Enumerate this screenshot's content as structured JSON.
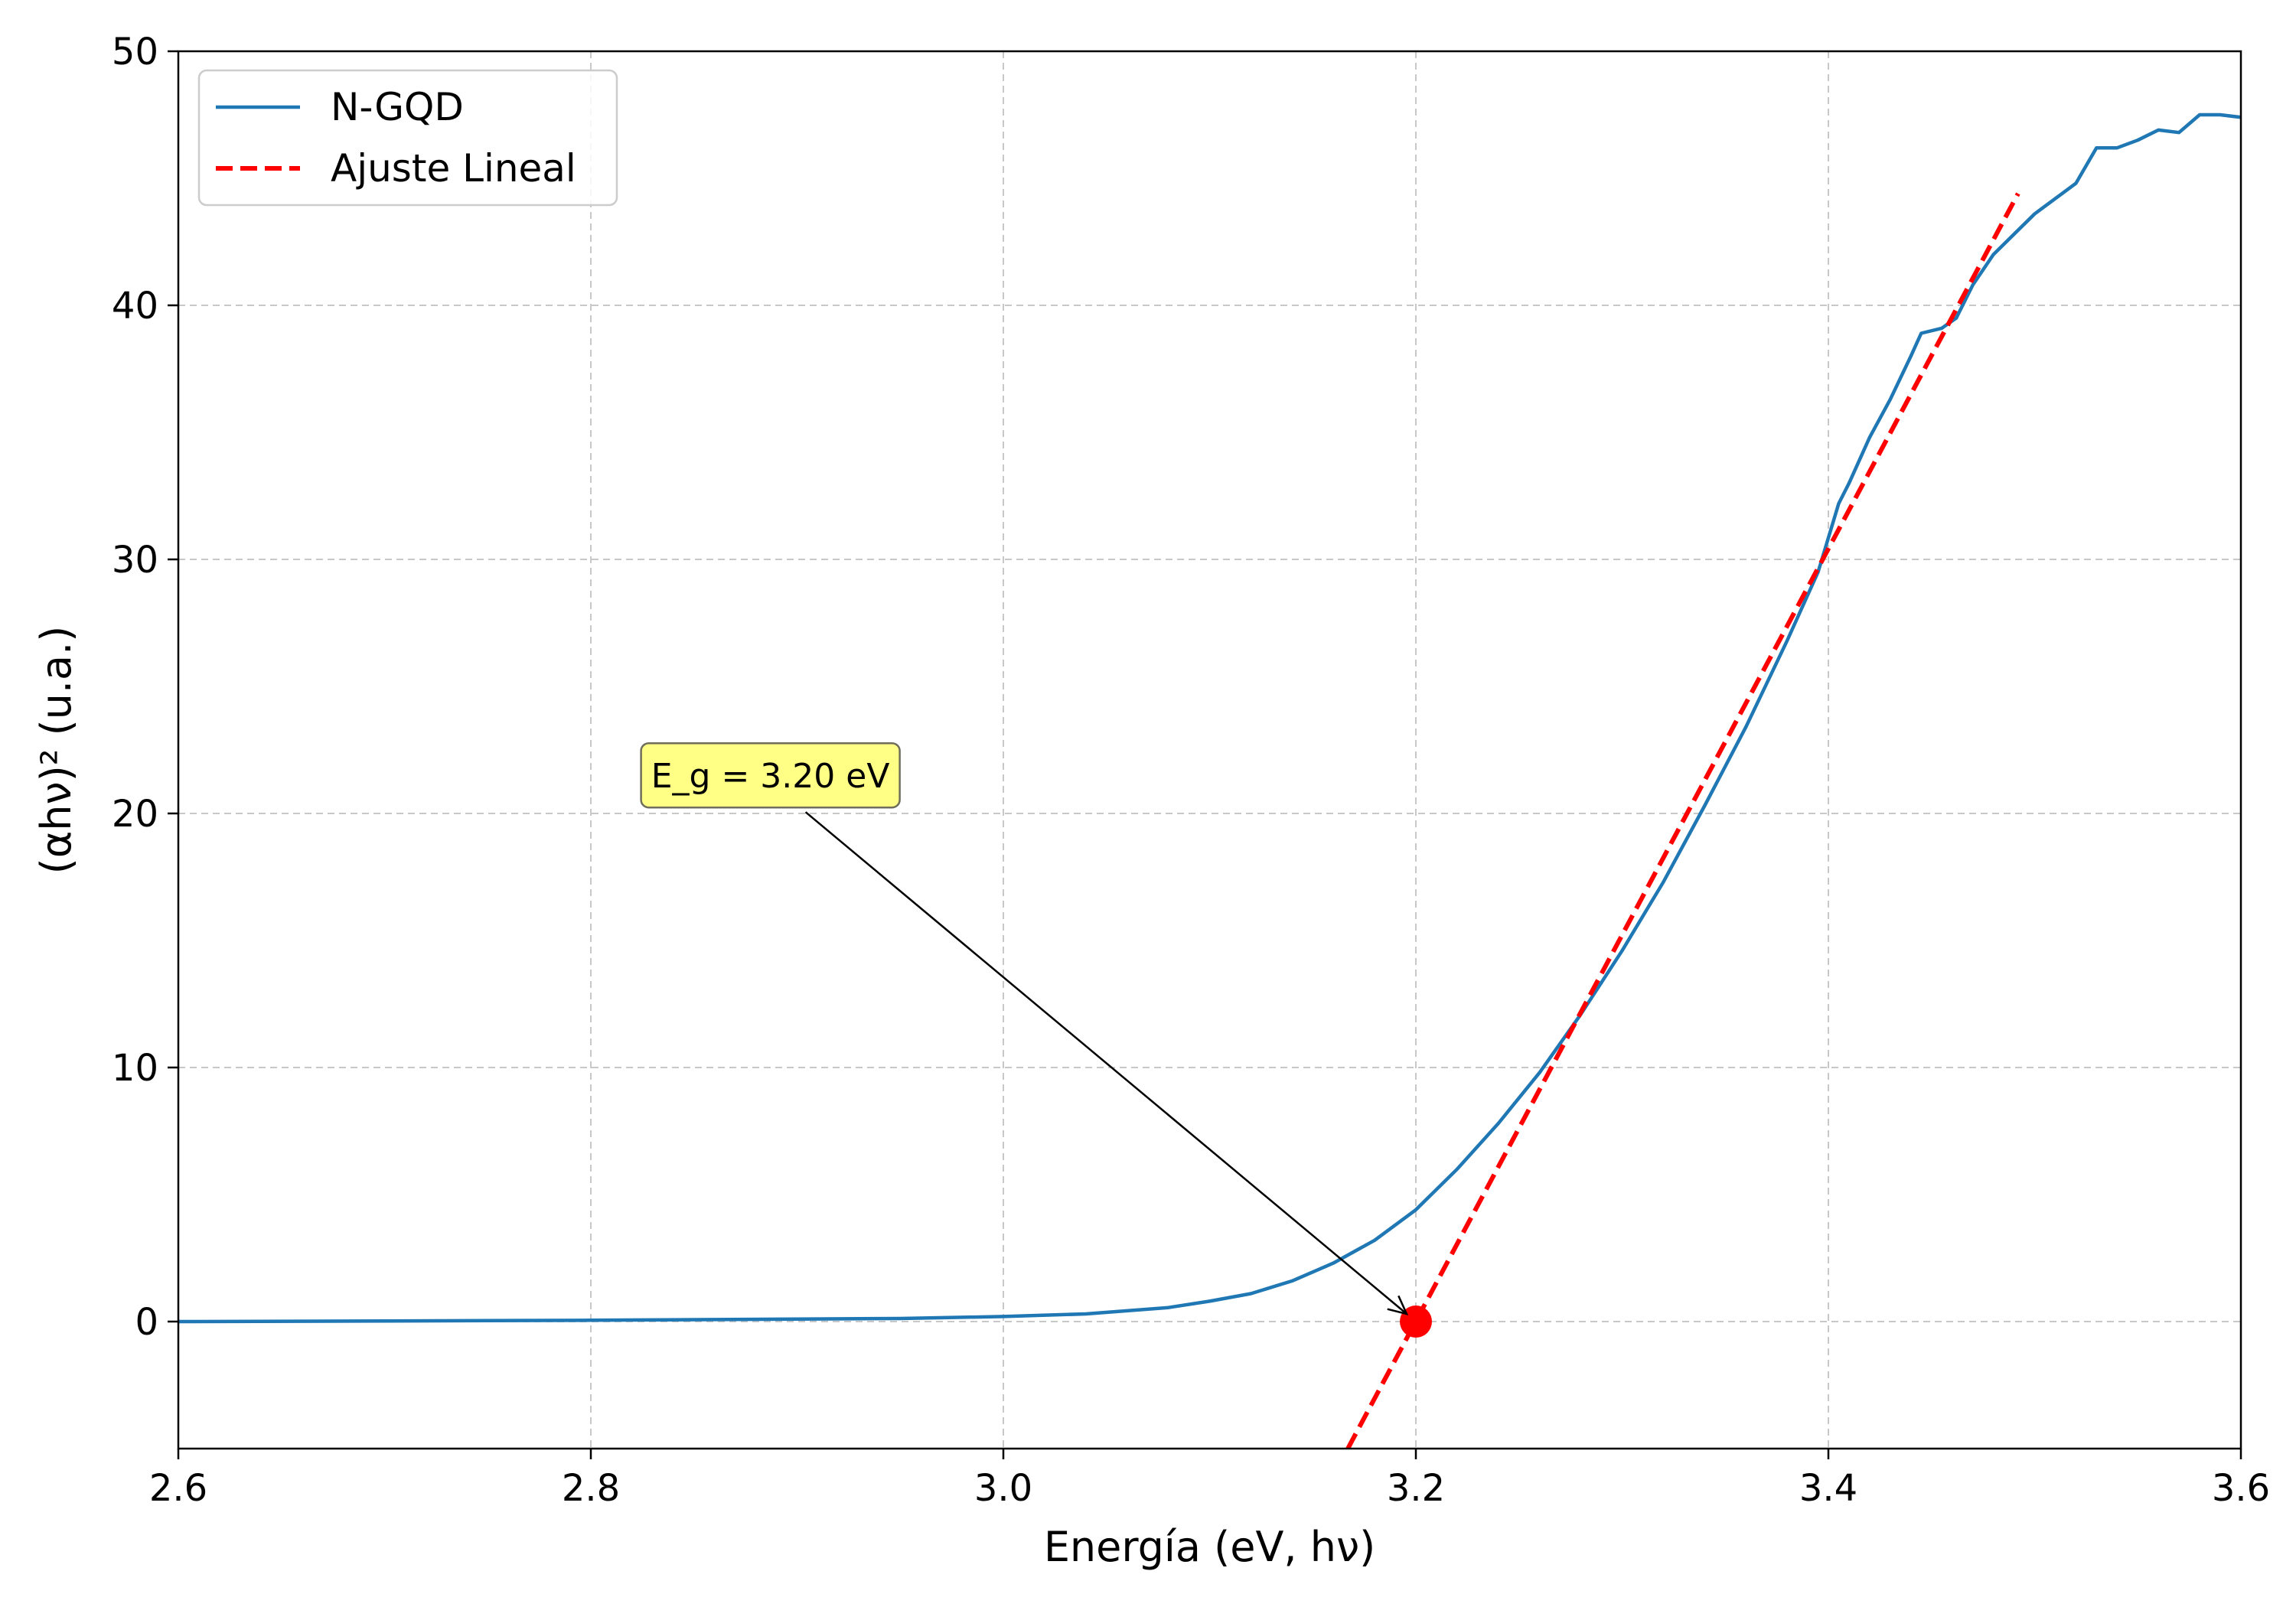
{
  "chart_data": {
    "type": "line",
    "xlabel": "Energía (eV, hν)",
    "ylabel": "(αhν)² (u.a.)",
    "xlim": [
      2.6,
      3.6
    ],
    "ylim": [
      -5,
      50
    ],
    "xticks": [
      2.6,
      2.8,
      3.0,
      3.2,
      3.4,
      3.6
    ],
    "xtick_labels": [
      "2.6",
      "2.8",
      "3.0",
      "3.2",
      "3.4",
      "3.6"
    ],
    "yticks": [
      0,
      10,
      20,
      30,
      40,
      50
    ],
    "ytick_labels": [
      "0",
      "10",
      "20",
      "30",
      "40",
      "50"
    ],
    "grid": true,
    "legend_position": "top-left",
    "colors": {
      "series": "#1f77b4",
      "fit": "#ff0000",
      "annotation_box": "#ffff80"
    },
    "series": [
      {
        "name": "N-GQD",
        "style": "solid",
        "x": [
          2.6,
          2.7,
          2.8,
          2.9,
          2.95,
          3.0,
          3.04,
          3.08,
          3.1,
          3.12,
          3.14,
          3.16,
          3.18,
          3.2,
          3.22,
          3.24,
          3.26,
          3.28,
          3.3,
          3.32,
          3.34,
          3.36,
          3.38,
          3.395,
          3.405,
          3.41,
          3.42,
          3.43,
          3.44,
          3.445,
          3.455,
          3.462,
          3.47,
          3.48,
          3.49,
          3.5,
          3.51,
          3.52,
          3.53,
          3.54,
          3.55,
          3.56,
          3.57,
          3.58,
          3.59,
          3.6
        ],
        "y": [
          0.0,
          0.02,
          0.05,
          0.1,
          0.12,
          0.2,
          0.3,
          0.55,
          0.8,
          1.1,
          1.6,
          2.3,
          3.2,
          4.4,
          6.0,
          7.8,
          9.8,
          12.1,
          14.6,
          17.3,
          20.3,
          23.4,
          26.8,
          29.5,
          32.2,
          33.0,
          34.8,
          36.3,
          38.0,
          38.9,
          39.1,
          39.5,
          40.8,
          42.0,
          42.8,
          43.6,
          44.2,
          44.8,
          46.2,
          46.2,
          46.5,
          46.9,
          46.8,
          47.5,
          47.5,
          47.4
        ]
      },
      {
        "name": "Ajuste Lineal",
        "style": "dashed",
        "x": [
          3.167,
          3.492
        ],
        "y": [
          -5.0,
          44.4
        ]
      }
    ],
    "points": [
      {
        "x": 3.2,
        "y": 0
      }
    ],
    "annotation": {
      "text": "E_g = 3.20 eV",
      "text_x": 2.88,
      "text_y": 21.5,
      "arrow_to_x": 3.2,
      "arrow_to_y": 0
    }
  }
}
